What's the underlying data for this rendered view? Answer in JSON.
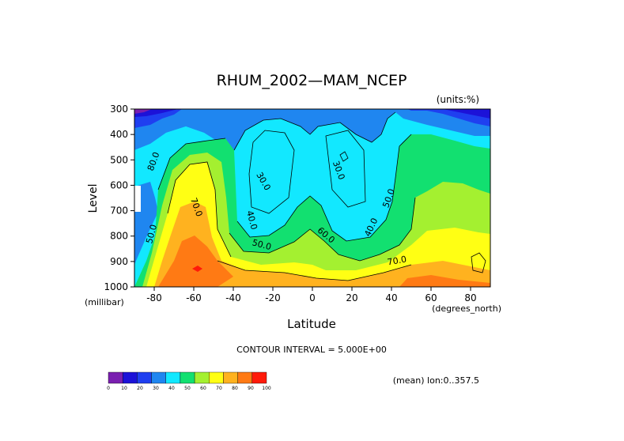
{
  "chart_data": {
    "type": "heatmap",
    "title": "RHUM_2002—MAM_NCEP",
    "units": "(units:%)",
    "xlabel": "Latitude",
    "xunits": "(degrees_north)",
    "ylabel": "Level",
    "yunits": "(millibar)",
    "xlim": [
      -90,
      90
    ],
    "ylim": [
      1000,
      300
    ],
    "xticks": [
      -80,
      -60,
      -40,
      -20,
      0,
      20,
      40,
      60,
      80
    ],
    "yticks": [
      300,
      400,
      500,
      600,
      700,
      800,
      900,
      1000
    ],
    "contour_interval_text": "CONTOUR INTERVAL = 5.000E+00",
    "mean_text": "(mean) lon:0..357.5",
    "colorbar": {
      "labels": [
        "0",
        "10",
        "20",
        "30",
        "40",
        "50",
        "60",
        "70",
        "80",
        "90",
        "100"
      ],
      "colors": [
        "#7a1fb0",
        "#1c12d8",
        "#1f3ff0",
        "#1f86f0",
        "#12e8ff",
        "#12e070",
        "#a4f030",
        "#ffff14",
        "#ffb21f",
        "#ff7a14",
        "#ff1a0a"
      ]
    },
    "contour_labels": [
      {
        "text": "80.0",
        "lat": -79,
        "p": 510,
        "rot": -70
      },
      {
        "text": "70.0",
        "lat": -60,
        "p": 690,
        "rot": 70
      },
      {
        "text": "50.0",
        "lat": -80,
        "p": 795,
        "rot": -75
      },
      {
        "text": "30.0",
        "lat": -26,
        "p": 590,
        "rot": 60
      },
      {
        "text": "40.0",
        "lat": -32,
        "p": 740,
        "rot": 75
      },
      {
        "text": "50.0",
        "lat": -26,
        "p": 845,
        "rot": 15
      },
      {
        "text": "30.0",
        "lat": 12,
        "p": 545,
        "rot": 70
      },
      {
        "text": "60.0",
        "lat": 6,
        "p": 805,
        "rot": 40
      },
      {
        "text": "40.0",
        "lat": 31,
        "p": 770,
        "rot": -65
      },
      {
        "text": "50.0",
        "lat": 40,
        "p": 655,
        "rot": -70
      },
      {
        "text": "70.0",
        "lat": 43,
        "p": 908,
        "rot": -10
      }
    ]
  }
}
